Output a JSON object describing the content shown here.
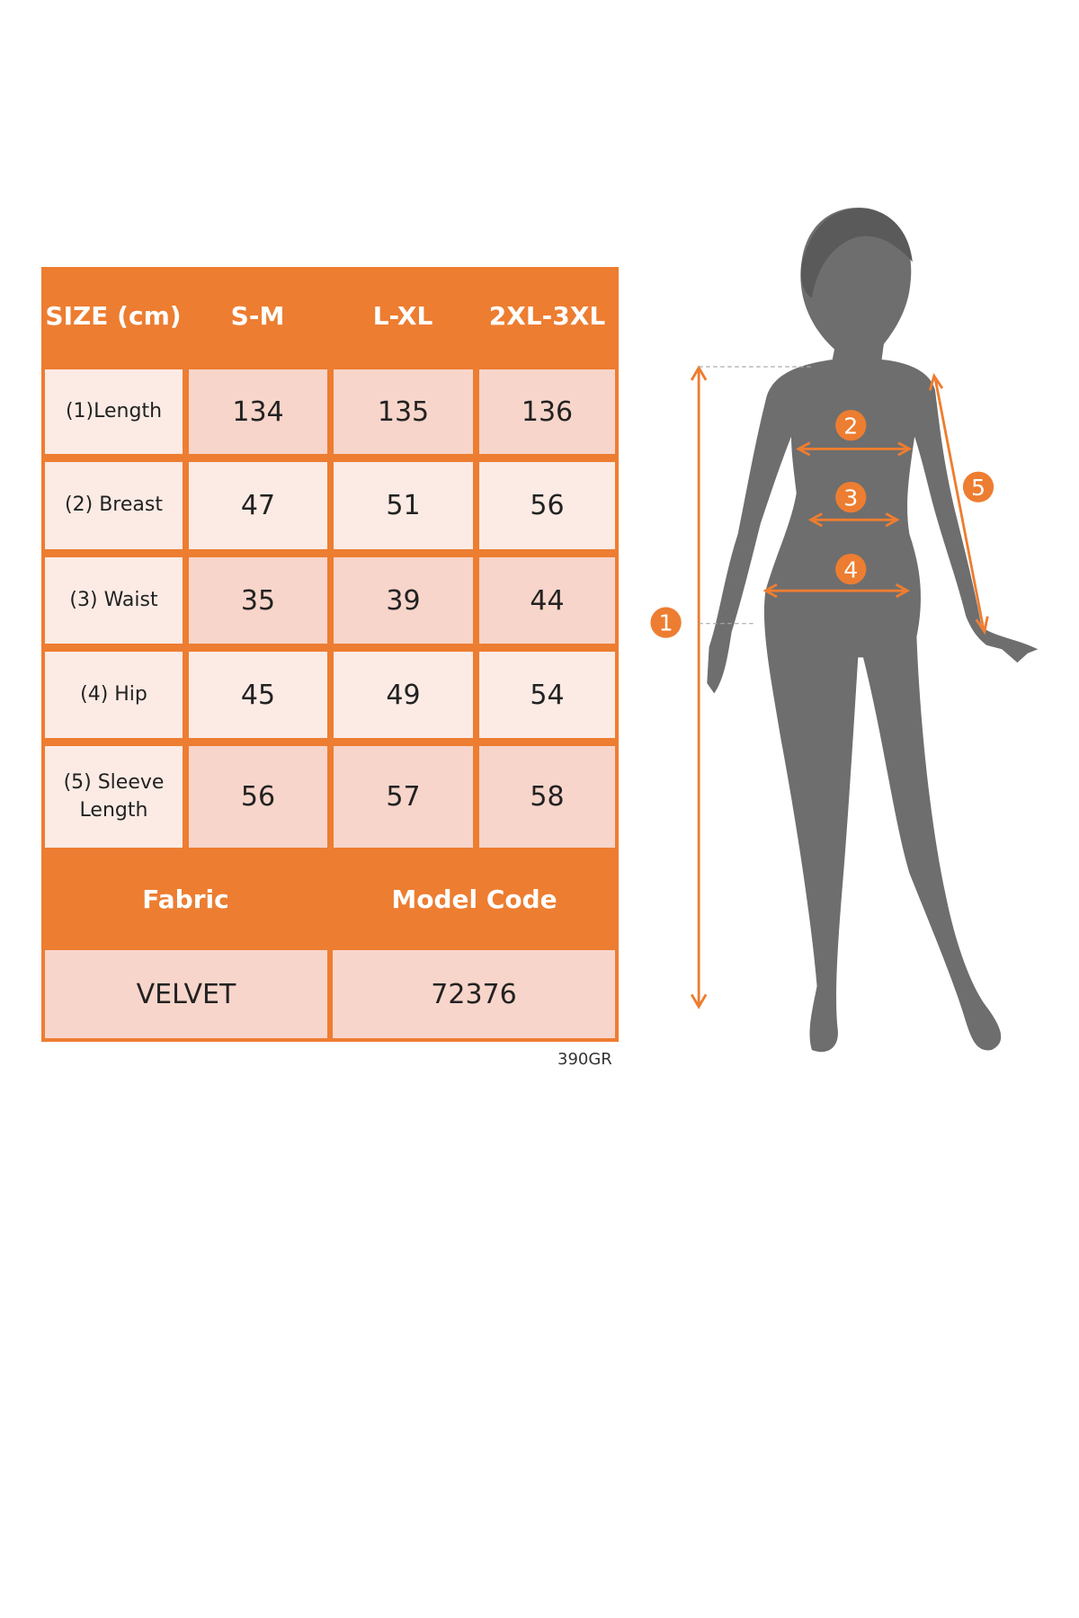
{
  "size_chart": {
    "header": {
      "size_label": "SIZE (cm)",
      "sizes": [
        "S-M",
        "L-XL",
        "2XL-3XL"
      ]
    },
    "rows": [
      {
        "label": "(1)Length",
        "values": [
          "134",
          "135",
          "136"
        ]
      },
      {
        "label": "(2) Breast",
        "values": [
          "47",
          "51",
          "56"
        ]
      },
      {
        "label": "(3) Waist",
        "values": [
          "35",
          "39",
          "44"
        ]
      },
      {
        "label": "(4) Hip",
        "values": [
          "45",
          "49",
          "54"
        ]
      },
      {
        "label": "(5) Sleeve Length",
        "values": [
          "56",
          "57",
          "58"
        ]
      }
    ],
    "footer_headers": {
      "fabric": "Fabric",
      "model_code": "Model Code"
    },
    "footer_values": {
      "fabric": "VELVET",
      "model_code": "72376"
    },
    "weight_note": "390GR"
  },
  "figure": {
    "markers": [
      "1",
      "2",
      "3",
      "4",
      "5"
    ]
  },
  "colors": {
    "accent": "#ED7D31",
    "cell_dark": "#F8D5CA",
    "cell_light": "#FCEBE5",
    "silhouette": "#6E6E6E"
  }
}
